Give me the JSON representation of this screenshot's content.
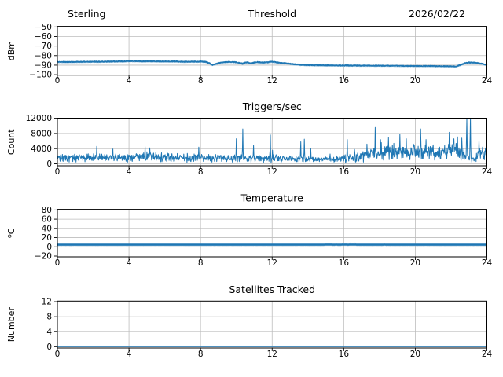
{
  "figure": {
    "station": "Sterling",
    "date": "2026/02/22",
    "background": "#ffffff",
    "accent_color": "#1f77b4",
    "secondary_color": "#9fc6e0",
    "grid_color": "#bdbdbd",
    "spine_color": "#000000"
  },
  "chart_data": [
    {
      "type": "line",
      "title_left": "Sterling",
      "title": "Threshold",
      "title_right": "2026/02/22",
      "ylabel": "dBm",
      "xlim": [
        0,
        24
      ],
      "ylim": [
        -100,
        -50
      ],
      "yticks": [
        -50,
        -60,
        -70,
        -80,
        -90,
        -100
      ],
      "xticks": [
        0,
        4,
        8,
        12,
        16,
        20,
        24
      ],
      "grid": true,
      "legend": "none",
      "series": [
        {
          "name": "threshold-dbm-secondary",
          "color": "#9fc6e0",
          "width": 1.0,
          "noise": 0.32,
          "offset": -0.75,
          "seed": 12,
          "samples_per_hour": 100,
          "base_series": 1
        },
        {
          "name": "threshold-dbm",
          "color": "#1f77b4",
          "width": 1.4,
          "noise": 0.5,
          "offset": 0,
          "seed": 11,
          "samples_per_hour": 100,
          "keypoints": [
            [
              0,
              -86.6
            ],
            [
              0.7,
              -86.6
            ],
            [
              1.5,
              -86.4
            ],
            [
              2.5,
              -86.3
            ],
            [
              3.2,
              -86.1
            ],
            [
              4.2,
              -85.7
            ],
            [
              4.8,
              -86.0
            ],
            [
              5.3,
              -85.8
            ],
            [
              6,
              -86.1
            ],
            [
              6.5,
              -86.0
            ],
            [
              7,
              -86.4
            ],
            [
              7.5,
              -86.3
            ],
            [
              8,
              -86.2
            ],
            [
              8.3,
              -86.5
            ],
            [
              8.5,
              -88.0
            ],
            [
              8.65,
              -89.7
            ],
            [
              8.8,
              -89.2
            ],
            [
              9,
              -87.8
            ],
            [
              9.3,
              -86.9
            ],
            [
              9.6,
              -86.6
            ],
            [
              9.9,
              -86.7
            ],
            [
              10.1,
              -87.2
            ],
            [
              10.35,
              -88.4
            ],
            [
              10.5,
              -87.3
            ],
            [
              10.65,
              -87.0
            ],
            [
              10.8,
              -88.2
            ],
            [
              11,
              -87.3
            ],
            [
              11.15,
              -86.7
            ],
            [
              11.35,
              -87.1
            ],
            [
              11.6,
              -87.2
            ],
            [
              11.75,
              -87.0
            ],
            [
              11.95,
              -86.3
            ],
            [
              12.1,
              -86.6
            ],
            [
              12.4,
              -87.5
            ],
            [
              12.8,
              -88.1
            ],
            [
              13.2,
              -89.0
            ],
            [
              13.6,
              -89.6
            ],
            [
              14,
              -89.9
            ],
            [
              15,
              -90.1
            ],
            [
              16,
              -90.3
            ],
            [
              17,
              -90.4
            ],
            [
              18,
              -90.5
            ],
            [
              19,
              -90.6
            ],
            [
              20,
              -90.8
            ],
            [
              21,
              -90.9
            ],
            [
              21.8,
              -91.1
            ],
            [
              22.3,
              -91.2
            ],
            [
              22.6,
              -89.2
            ],
            [
              22.8,
              -87.6
            ],
            [
              23,
              -87.2
            ],
            [
              23.3,
              -87.4
            ],
            [
              23.5,
              -87.8
            ],
            [
              23.8,
              -88.9
            ],
            [
              24,
              -89.6
            ]
          ]
        }
      ]
    },
    {
      "type": "spiky-line",
      "title": "Triggers/sec",
      "ylabel": "Count",
      "xlim": [
        0,
        24
      ],
      "ylim": [
        0,
        12000
      ],
      "yticks": [
        12000,
        8000,
        4000,
        0
      ],
      "xticks": [
        0,
        4,
        8,
        12,
        16,
        20,
        24
      ],
      "grid": true,
      "legend": "none",
      "series": [
        {
          "name": "triggers-per-sec",
          "color": "#1f77b4",
          "width": 1.0,
          "seed": 21,
          "samples_per_hour": 50,
          "floor": 120,
          "baseline": [
            [
              0,
              1500,
              1300
            ],
            [
              2,
              1600,
              1400
            ],
            [
              4,
              1600,
              1400
            ],
            [
              5,
              1800,
              1500
            ],
            [
              6,
              1600,
              1400
            ],
            [
              8,
              1500,
              1300
            ],
            [
              9.5,
              1500,
              1300
            ],
            [
              11,
              1400,
              1200
            ],
            [
              12.5,
              1400,
              1200
            ],
            [
              14,
              1100,
              900
            ],
            [
              15.5,
              1200,
              1000
            ],
            [
              16.5,
              1600,
              1400
            ],
            [
              17.5,
              2400,
              2000
            ],
            [
              18.5,
              2800,
              2400
            ],
            [
              19.5,
              3000,
              2600
            ],
            [
              20.5,
              3100,
              2700
            ],
            [
              21.5,
              3000,
              2600
            ],
            [
              22.3,
              3600,
              3000
            ],
            [
              22.75,
              2600,
              2200
            ],
            [
              23.15,
              900,
              700
            ],
            [
              23.3,
              1000,
              800
            ],
            [
              23.6,
              2600,
              2100
            ],
            [
              24,
              2700,
              2100
            ]
          ],
          "spikes": [
            [
              2.2,
              4600
            ],
            [
              3.1,
              3900
            ],
            [
              4.9,
              4500
            ],
            [
              5.15,
              4200
            ],
            [
              7.9,
              4400
            ],
            [
              10.0,
              6600
            ],
            [
              10.35,
              9200
            ],
            [
              10.95,
              4900
            ],
            [
              11.9,
              7600
            ],
            [
              12.02,
              3600
            ],
            [
              13.6,
              5800
            ],
            [
              13.8,
              6500
            ],
            [
              14.15,
              4000
            ],
            [
              16.2,
              6400
            ],
            [
              16.6,
              3800
            ],
            [
              17.3,
              5200
            ],
            [
              17.75,
              9600
            ],
            [
              18.1,
              5600
            ],
            [
              18.5,
              6900
            ],
            [
              18.8,
              5400
            ],
            [
              19.15,
              7800
            ],
            [
              19.5,
              6600
            ],
            [
              19.9,
              5200
            ],
            [
              20.3,
              9200
            ],
            [
              20.6,
              6400
            ],
            [
              21.0,
              5000
            ],
            [
              21.35,
              4400
            ],
            [
              21.9,
              8300
            ],
            [
              22.15,
              6600
            ],
            [
              22.35,
              7100
            ],
            [
              22.6,
              6800
            ],
            [
              22.88,
              13600
            ],
            [
              23.08,
              13600
            ],
            [
              23.55,
              6200
            ],
            [
              23.75,
              4400
            ],
            [
              23.95,
              5300
            ]
          ]
        }
      ]
    },
    {
      "type": "line",
      "title": "Temperature",
      "ylabel": "C",
      "ylabel_sup": "o",
      "xlim": [
        0,
        24
      ],
      "ylim": [
        -20,
        80
      ],
      "yticks": [
        80,
        60,
        40,
        20,
        0,
        -20
      ],
      "xticks": [
        0,
        4,
        8,
        12,
        16,
        20,
        24
      ],
      "grid": true,
      "legend": "none",
      "series": [
        {
          "name": "temperature-secondary",
          "color": "#9fc6e0",
          "width": 1.3,
          "noise": 0.15,
          "seed": 31,
          "samples_per_hour": 60,
          "keypoints": [
            [
              0,
              2.9
            ],
            [
              14.9,
              2.9
            ],
            [
              15.0,
              7.3
            ],
            [
              15.15,
              7.6
            ],
            [
              15.3,
              7.2
            ],
            [
              15.35,
              2.9
            ],
            [
              15.5,
              2.9
            ],
            [
              15.58,
              6.8
            ],
            [
              15.66,
              2.9
            ],
            [
              15.85,
              2.9
            ],
            [
              15.95,
              7.7
            ],
            [
              16.1,
              7.9
            ],
            [
              16.2,
              2.9
            ],
            [
              16.28,
              2.9
            ],
            [
              16.35,
              8.0
            ],
            [
              16.5,
              7.8
            ],
            [
              16.65,
              8.1
            ],
            [
              16.72,
              2.9
            ],
            [
              18.2,
              2.9
            ],
            [
              18.28,
              6.3
            ],
            [
              18.36,
              2.9
            ],
            [
              24,
              2.9
            ]
          ]
        },
        {
          "name": "temperature-main",
          "color": "#1f77b4",
          "width": 2.4,
          "noise": 0,
          "seed": 32,
          "samples_per_hour": 2,
          "keypoints": [
            [
              0,
              4.8
            ],
            [
              24,
              4.8
            ]
          ]
        }
      ]
    },
    {
      "type": "line",
      "title": "Satellites Tracked",
      "ylabel": "Number",
      "xlim": [
        0,
        24
      ],
      "ylim": [
        0,
        12
      ],
      "yticks": [
        12,
        8,
        4,
        0
      ],
      "xticks": [
        0,
        4,
        8,
        12,
        16,
        20,
        24
      ],
      "grid": true,
      "legend": "none",
      "series": [
        {
          "name": "satellites-tracked",
          "color": "#1f77b4",
          "width": 1.6,
          "noise": 0,
          "seed": 41,
          "samples_per_hour": 2,
          "keypoints": [
            [
              0,
              0.1
            ],
            [
              24,
              0.1
            ]
          ]
        }
      ]
    }
  ]
}
